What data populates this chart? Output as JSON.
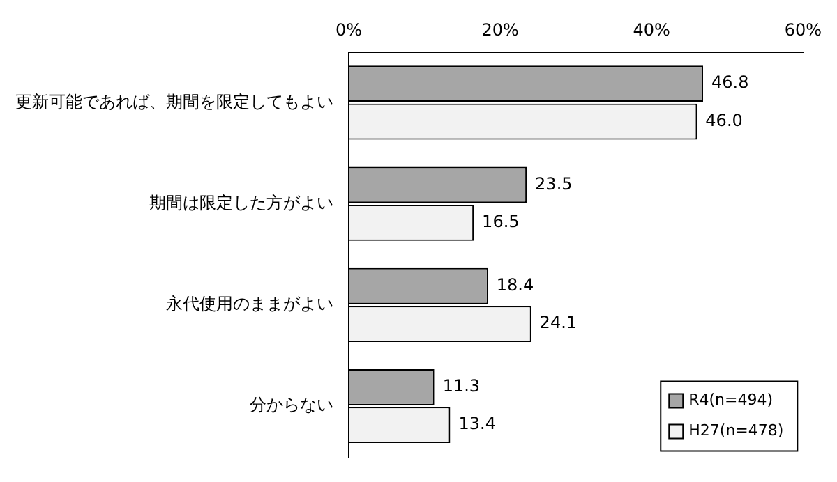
{
  "chart_data": {
    "type": "bar",
    "orientation": "horizontal",
    "categories": [
      "更新可能であれば、期間を限定してもよい",
      "期間は限定した方がよい",
      "永代使用のままがよい",
      "分からない"
    ],
    "series": [
      {
        "name": "R4(n=494)",
        "color": "#a6a6a6",
        "values": [
          46.8,
          23.5,
          18.4,
          11.3
        ],
        "value_labels": [
          "46.8",
          "23.5",
          "18.4",
          "11.3"
        ]
      },
      {
        "name": "H27(n=478)",
        "color": "#f2f2f2",
        "values": [
          46.0,
          16.5,
          24.1,
          13.4
        ],
        "value_labels": [
          "46.0",
          "16.5",
          "24.1",
          "13.4"
        ]
      }
    ],
    "xlim": [
      0,
      60
    ],
    "xticks": [
      {
        "value": 0,
        "label": "0%"
      },
      {
        "value": 20,
        "label": "20%"
      },
      {
        "value": 40,
        "label": "40%"
      },
      {
        "value": 60,
        "label": "60%"
      }
    ],
    "grid": false,
    "legend": "bottom right"
  }
}
